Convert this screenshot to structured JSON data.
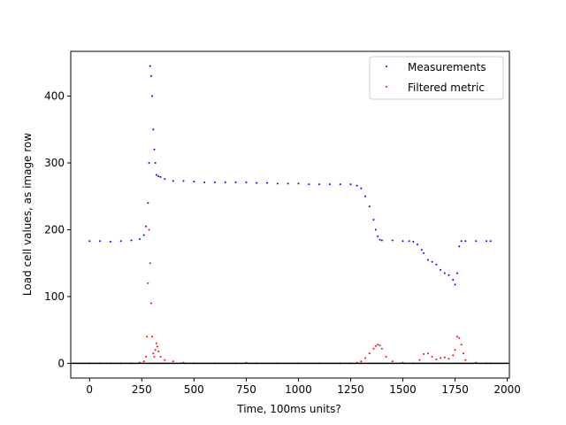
{
  "chart_data": {
    "type": "scatter",
    "title": "",
    "xlabel": "Time, 100ms units?",
    "ylabel": "Load cell values, as image row",
    "xlim": [
      -90,
      2010
    ],
    "ylim": [
      -22,
      467
    ],
    "xticks": [
      0,
      250,
      500,
      750,
      1000,
      1250,
      1500,
      1750,
      2000
    ],
    "yticks": [
      0,
      100,
      200,
      300,
      400
    ],
    "reference_line": {
      "y": 0,
      "color": "#000000"
    },
    "grid": false,
    "legend": "top-right",
    "series": [
      {
        "name": "Measurements",
        "color": "#0000ff",
        "marker": "point",
        "x": [
          0,
          50,
          100,
          150,
          200,
          240,
          260,
          270,
          280,
          285,
          290,
          295,
          300,
          305,
          310,
          315,
          320,
          330,
          340,
          360,
          400,
          450,
          500,
          550,
          600,
          650,
          700,
          750,
          800,
          850,
          900,
          950,
          1000,
          1050,
          1100,
          1150,
          1200,
          1250,
          1280,
          1300,
          1320,
          1340,
          1360,
          1370,
          1380,
          1390,
          1400,
          1450,
          1500,
          1530,
          1550,
          1570,
          1590,
          1600,
          1620,
          1640,
          1660,
          1680,
          1700,
          1720,
          1740,
          1750,
          1760,
          1770,
          1780,
          1800,
          1850,
          1900,
          1920
        ],
        "y": [
          183,
          183,
          182,
          183,
          184,
          186,
          192,
          205,
          240,
          300,
          445,
          430,
          400,
          350,
          320,
          300,
          282,
          280,
          279,
          276,
          273,
          273,
          272,
          271,
          271,
          271,
          271,
          271,
          270,
          270,
          269,
          269,
          269,
          268,
          268,
          268,
          268,
          268,
          266,
          262,
          250,
          235,
          215,
          200,
          190,
          185,
          184,
          184,
          183,
          183,
          182,
          178,
          170,
          165,
          155,
          152,
          148,
          140,
          135,
          132,
          125,
          118,
          135,
          175,
          183,
          183,
          183,
          183,
          183
        ]
      },
      {
        "name": "Filtered metric",
        "color": "#ff0000",
        "marker": "point",
        "x": [
          0,
          50,
          100,
          150,
          200,
          240,
          260,
          270,
          275,
          280,
          285,
          290,
          295,
          300,
          305,
          310,
          315,
          320,
          325,
          330,
          340,
          360,
          400,
          450,
          500,
          600,
          700,
          750,
          800,
          900,
          1000,
          1100,
          1200,
          1250,
          1280,
          1300,
          1320,
          1340,
          1360,
          1370,
          1380,
          1390,
          1400,
          1420,
          1450,
          1500,
          1550,
          1580,
          1600,
          1620,
          1640,
          1660,
          1680,
          1700,
          1720,
          1740,
          1750,
          1760,
          1770,
          1780,
          1790,
          1800,
          1850,
          1900,
          1920
        ],
        "y": [
          0,
          0,
          0,
          0,
          0,
          1,
          3,
          10,
          40,
          120,
          200,
          150,
          90,
          40,
          15,
          10,
          20,
          30,
          25,
          18,
          10,
          5,
          3,
          1,
          0,
          0,
          0,
          1,
          0,
          0,
          0,
          0,
          0,
          0,
          1,
          3,
          8,
          15,
          22,
          26,
          28,
          27,
          22,
          10,
          3,
          1,
          0,
          5,
          14,
          15,
          10,
          6,
          8,
          9,
          7,
          12,
          20,
          40,
          38,
          28,
          15,
          5,
          1,
          0,
          0
        ]
      }
    ]
  }
}
